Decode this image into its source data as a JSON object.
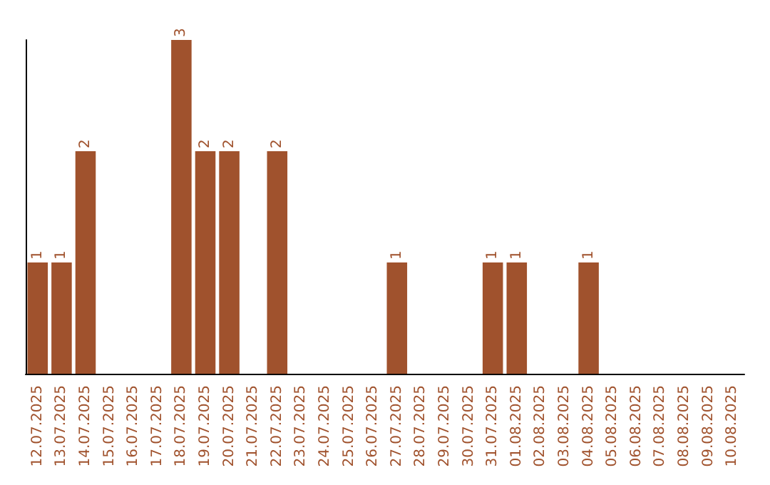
{
  "chart_data": {
    "type": "bar",
    "categories": [
      "12.07.2025",
      "13.07.2025",
      "14.07.2025",
      "15.07.2025",
      "16.07.2025",
      "17.07.2025",
      "18.07.2025",
      "19.07.2025",
      "20.07.2025",
      "21.07.2025",
      "22.07.2025",
      "23.07.2025",
      "24.07.2025",
      "25.07.2025",
      "26.07.2025",
      "27.07.2025",
      "28.07.2025",
      "29.07.2025",
      "30.07.2025",
      "31.07.2025",
      "01.08.2025",
      "02.08.2025",
      "03.08.2025",
      "04.08.2025",
      "05.08.2025",
      "06.08.2025",
      "07.08.2025",
      "08.08.2025",
      "09.08.2025",
      "10.08.2025"
    ],
    "values": [
      1,
      1,
      2,
      0,
      0,
      0,
      3,
      2,
      2,
      0,
      2,
      0,
      0,
      0,
      0,
      1,
      0,
      0,
      0,
      1,
      1,
      0,
      0,
      1,
      0,
      0,
      0,
      0,
      0,
      0
    ],
    "value_labels": [
      "1",
      "1",
      "2",
      null,
      null,
      null,
      "3",
      "2",
      "2",
      null,
      "2",
      null,
      null,
      null,
      null,
      "1",
      null,
      null,
      null,
      "1",
      "1",
      null,
      null,
      "1",
      null,
      null,
      null,
      null,
      null,
      null
    ],
    "color": "#a0522d",
    "ylim": [
      0,
      3
    ],
    "tick_labels": "x",
    "grid": false
  }
}
